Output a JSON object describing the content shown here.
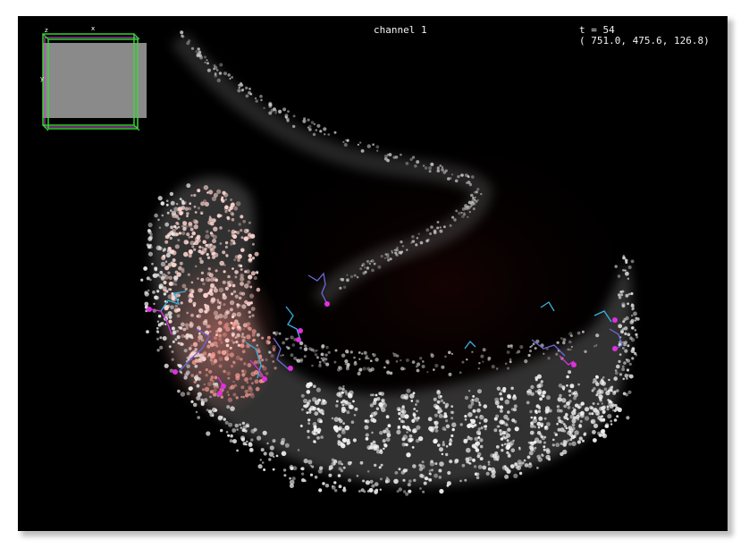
{
  "viewer": {
    "channel_label": "channel 1",
    "time_label": "t = 54",
    "coordinate_readout": "( 751.0, 475.6, 126.8)"
  },
  "navigator": {
    "axis_z": "z",
    "axis_x": "x",
    "axis_y": "y"
  },
  "colors": {
    "background": "#000000",
    "cell_nuclei": "#e8e8e8",
    "tissue_highlight": "#ff8a80",
    "track_magenta": "#e030e0",
    "track_cyan": "#3ab0e0",
    "track_blue": "#6a6ad8",
    "navigator_frame": "#33e033",
    "navigator_view": "#8a8a8a"
  }
}
